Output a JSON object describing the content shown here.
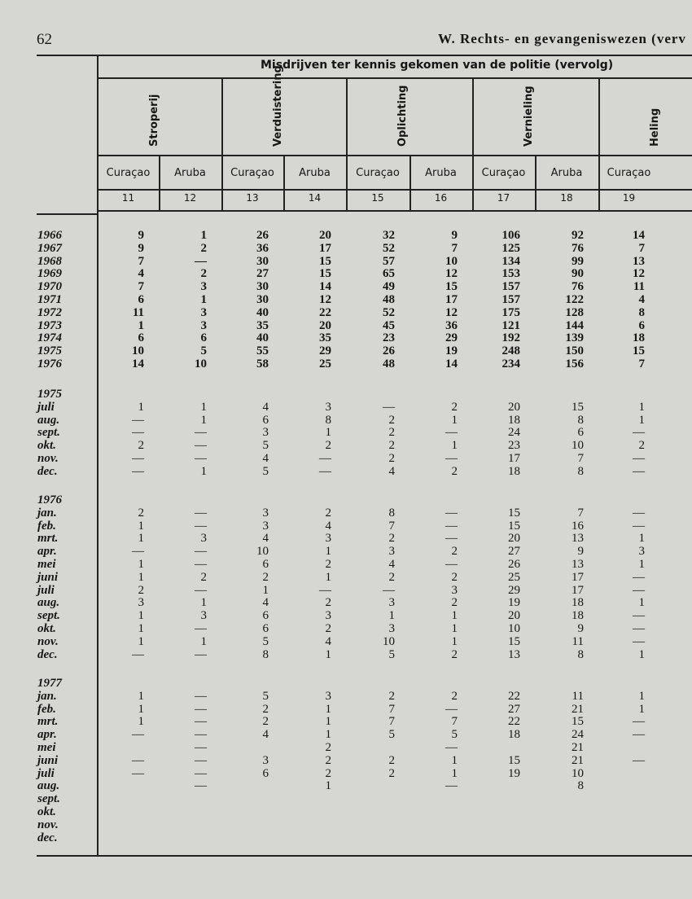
{
  "header": {
    "page_number": "62",
    "running_title": "W. Rechts- en gevangeniswezen (verv"
  },
  "table": {
    "title": "Misdrijven ter kennis gekomen van de politie (vervolg)",
    "groups": [
      "Stroperij",
      "Verduistering",
      "Oplichting",
      "Vernieling",
      "Heling"
    ],
    "columns": [
      {
        "region": "Curaçao",
        "number": "11"
      },
      {
        "region": "Aruba",
        "number": "12"
      },
      {
        "region": "Curaçao",
        "number": "13"
      },
      {
        "region": "Aruba",
        "number": "14"
      },
      {
        "region": "Curaçao",
        "number": "15"
      },
      {
        "region": "Aruba",
        "number": "16"
      },
      {
        "region": "Curaçao",
        "number": "17"
      },
      {
        "region": "Aruba",
        "number": "18"
      },
      {
        "region": "Curaçao",
        "number": "19"
      }
    ],
    "sections": [
      {
        "rows": [
          {
            "label": "1966",
            "values": [
              9,
              1,
              26,
              20,
              32,
              9,
              106,
              92,
              14
            ]
          },
          {
            "label": "1967",
            "values": [
              9,
              2,
              36,
              17,
              52,
              7,
              125,
              76,
              7
            ]
          },
          {
            "label": "1968",
            "values": [
              7,
              "—",
              30,
              15,
              57,
              10,
              134,
              99,
              13
            ]
          },
          {
            "label": "1969",
            "values": [
              4,
              2,
              27,
              15,
              65,
              12,
              153,
              90,
              12
            ]
          },
          {
            "label": "1970",
            "values": [
              7,
              3,
              30,
              14,
              49,
              15,
              157,
              76,
              11
            ]
          },
          {
            "label": "1971",
            "values": [
              6,
              1,
              30,
              12,
              48,
              17,
              157,
              122,
              4
            ]
          },
          {
            "label": "1972",
            "values": [
              11,
              3,
              40,
              22,
              52,
              12,
              175,
              128,
              8
            ]
          },
          {
            "label": "1973",
            "values": [
              1,
              3,
              35,
              20,
              45,
              36,
              121,
              144,
              6
            ]
          },
          {
            "label": "1974",
            "values": [
              6,
              6,
              40,
              35,
              23,
              29,
              192,
              139,
              18
            ]
          },
          {
            "label": "1975",
            "values": [
              10,
              5,
              55,
              29,
              26,
              19,
              248,
              150,
              15
            ]
          },
          {
            "label": "1976",
            "values": [
              14,
              10,
              58,
              25,
              48,
              14,
              234,
              156,
              7
            ]
          }
        ]
      },
      {
        "label": "1975",
        "rows": [
          {
            "label": "juli",
            "values": [
              1,
              1,
              4,
              3,
              "—",
              2,
              20,
              15,
              1
            ]
          },
          {
            "label": "aug.",
            "values": [
              "—",
              1,
              6,
              8,
              2,
              1,
              18,
              8,
              1
            ]
          },
          {
            "label": "sept.",
            "values": [
              "—",
              "—",
              3,
              1,
              2,
              "—",
              24,
              6,
              "—"
            ]
          },
          {
            "label": "okt.",
            "values": [
              2,
              "—",
              5,
              2,
              2,
              1,
              23,
              10,
              2
            ]
          },
          {
            "label": "nov.",
            "values": [
              "—",
              "—",
              4,
              "—",
              2,
              "—",
              17,
              7,
              "—"
            ]
          },
          {
            "label": "dec.",
            "values": [
              "—",
              1,
              5,
              "—",
              4,
              2,
              18,
              8,
              "—"
            ]
          }
        ]
      },
      {
        "label": "1976",
        "rows": [
          {
            "label": "jan.",
            "values": [
              2,
              "—",
              3,
              2,
              8,
              "—",
              15,
              7,
              "—"
            ]
          },
          {
            "label": "feb.",
            "values": [
              1,
              "—",
              3,
              4,
              7,
              "—",
              15,
              16,
              "—"
            ]
          },
          {
            "label": "mrt.",
            "values": [
              1,
              3,
              4,
              3,
              2,
              "—",
              20,
              13,
              1
            ]
          },
          {
            "label": "apr.",
            "values": [
              "—",
              "—",
              10,
              1,
              3,
              2,
              27,
              9,
              3
            ]
          },
          {
            "label": "mei",
            "values": [
              1,
              "—",
              6,
              2,
              4,
              "—",
              26,
              13,
              1
            ]
          },
          {
            "label": "juni",
            "values": [
              1,
              2,
              2,
              1,
              2,
              2,
              25,
              17,
              "—"
            ]
          },
          {
            "label": "juli",
            "values": [
              2,
              "—",
              1,
              "—",
              "—",
              3,
              29,
              17,
              "—"
            ]
          },
          {
            "label": "aug.",
            "values": [
              3,
              1,
              4,
              2,
              3,
              2,
              19,
              18,
              1
            ]
          },
          {
            "label": "sept.",
            "values": [
              1,
              3,
              6,
              3,
              1,
              1,
              20,
              18,
              "—"
            ]
          },
          {
            "label": "okt.",
            "values": [
              1,
              "—",
              6,
              2,
              3,
              1,
              10,
              9,
              "—"
            ]
          },
          {
            "label": "nov.",
            "values": [
              1,
              1,
              5,
              4,
              10,
              1,
              15,
              11,
              "—"
            ]
          },
          {
            "label": "dec.",
            "values": [
              "—",
              "—",
              8,
              1,
              5,
              2,
              13,
              8,
              1
            ]
          }
        ]
      },
      {
        "label": "1977",
        "rows": [
          {
            "label": "jan.",
            "values": [
              1,
              "—",
              5,
              3,
              2,
              2,
              22,
              11,
              1
            ]
          },
          {
            "label": "feb.",
            "values": [
              1,
              "—",
              2,
              1,
              7,
              "—",
              27,
              21,
              1
            ]
          },
          {
            "label": "mrt.",
            "values": [
              1,
              "—",
              2,
              1,
              7,
              7,
              22,
              15,
              "—"
            ]
          },
          {
            "label": "apr.",
            "values": [
              "—",
              "—",
              4,
              1,
              5,
              5,
              18,
              24,
              "—"
            ]
          },
          {
            "label": "mei",
            "values": [
              null,
              "—",
              null,
              2,
              null,
              "—",
              null,
              21,
              null
            ]
          },
          {
            "label": "juni",
            "values": [
              "—",
              "—",
              3,
              2,
              2,
              1,
              15,
              21,
              "—"
            ]
          },
          {
            "label": "juli",
            "values": [
              "—",
              "—",
              6,
              2,
              2,
              1,
              19,
              10,
              null
            ]
          },
          {
            "label": "aug.",
            "values": [
              null,
              "—",
              null,
              1,
              null,
              "—",
              null,
              8,
              null
            ]
          },
          {
            "label": "sept.",
            "values": [
              null,
              null,
              null,
              null,
              null,
              null,
              null,
              null,
              null
            ]
          },
          {
            "label": "okt.",
            "values": [
              null,
              null,
              null,
              null,
              null,
              null,
              null,
              null,
              null
            ]
          },
          {
            "label": "nov.",
            "values": [
              null,
              null,
              null,
              null,
              null,
              null,
              null,
              null,
              null
            ]
          },
          {
            "label": "dec.",
            "values": [
              null,
              null,
              null,
              null,
              null,
              null,
              null,
              null,
              null
            ]
          }
        ]
      }
    ]
  }
}
